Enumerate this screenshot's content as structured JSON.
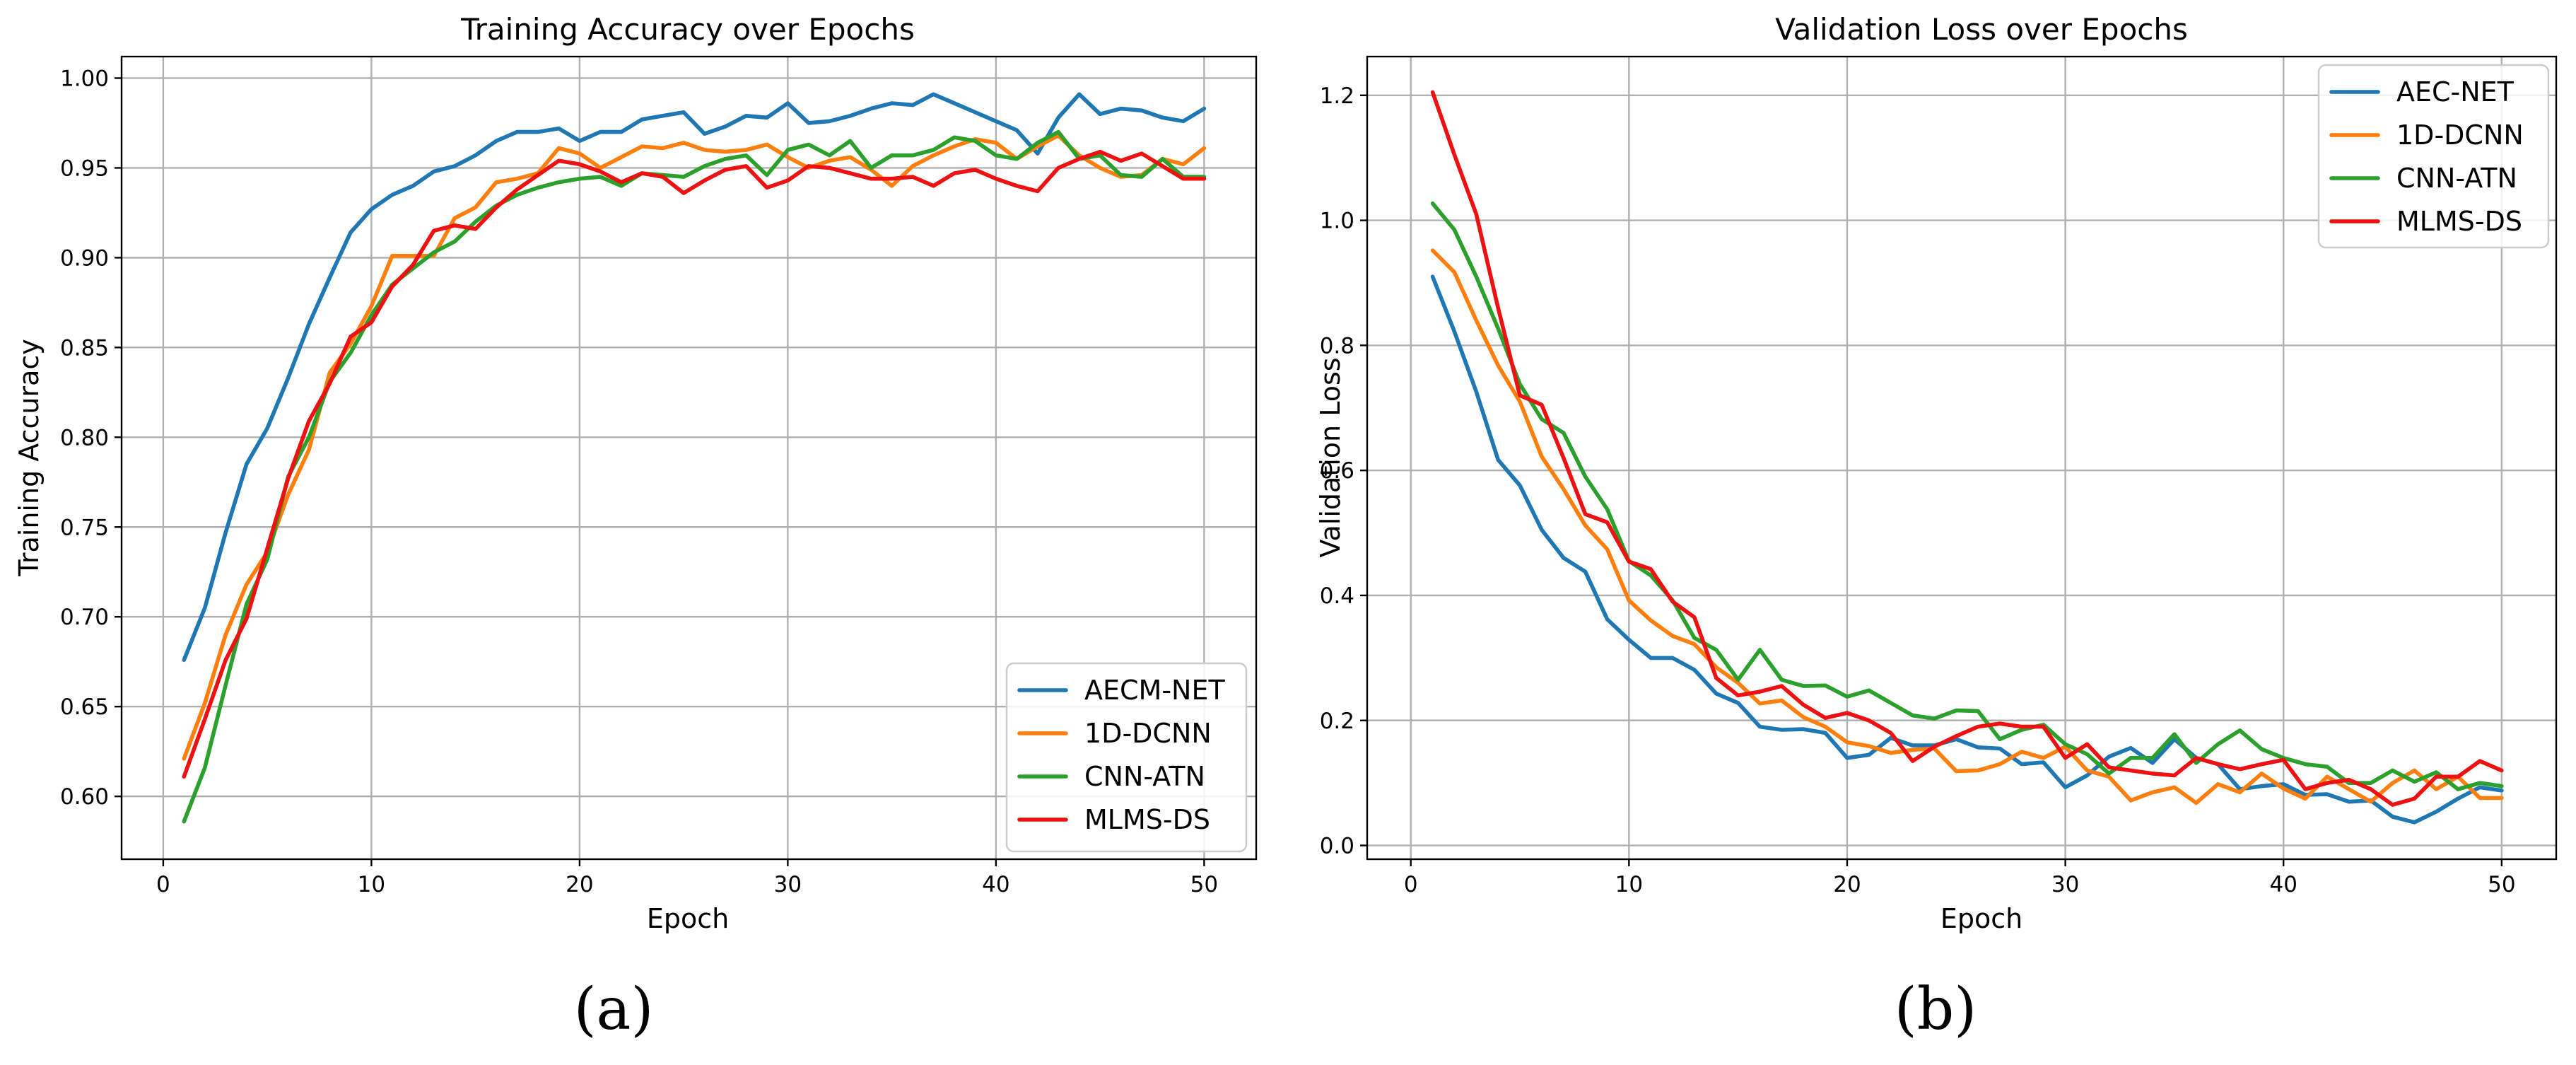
{
  "colors": {
    "blue": "#1f77b4",
    "orange": "#ff7f0e",
    "green": "#2ca02c",
    "red": "#ee1111"
  },
  "chart_data": [
    {
      "type": "line",
      "panel_label": "(a)",
      "title": "Training Accuracy over Epochs",
      "xlabel": "Epoch",
      "ylabel": "Training Accuracy",
      "xlim": [
        -2,
        52.5
      ],
      "ylim": [
        0.565,
        1.012
      ],
      "xticks": [
        0,
        10,
        20,
        30,
        40,
        50
      ],
      "yticks": [
        0.6,
        0.65,
        0.7,
        0.75,
        0.8,
        0.85,
        0.9,
        0.95,
        1.0
      ],
      "ytick_labels": [
        "0.60",
        "0.65",
        "0.70",
        "0.75",
        "0.80",
        "0.85",
        "0.90",
        "0.95",
        "1.00"
      ],
      "grid": true,
      "legend_position": "lower-right",
      "x": [
        1,
        2,
        3,
        4,
        5,
        6,
        7,
        8,
        9,
        10,
        11,
        12,
        13,
        14,
        15,
        16,
        17,
        18,
        19,
        20,
        21,
        22,
        23,
        24,
        25,
        26,
        27,
        28,
        29,
        30,
        31,
        32,
        33,
        34,
        35,
        36,
        37,
        38,
        39,
        40,
        41,
        42,
        43,
        44,
        45,
        46,
        47,
        48,
        49,
        50
      ],
      "series": [
        {
          "name": "AECM-NET",
          "color": "#1f77b4",
          "values": [
            0.676,
            0.705,
            0.747,
            0.785,
            0.805,
            0.833,
            0.863,
            0.889,
            0.914,
            0.927,
            0.935,
            0.94,
            0.948,
            0.951,
            0.957,
            0.965,
            0.97,
            0.97,
            0.972,
            0.965,
            0.97,
            0.97,
            0.977,
            0.979,
            0.981,
            0.969,
            0.973,
            0.979,
            0.978,
            0.986,
            0.975,
            0.976,
            0.979,
            0.983,
            0.986,
            0.985,
            0.991,
            0.986,
            0.981,
            0.976,
            0.971,
            0.958,
            0.978,
            0.991,
            0.98,
            0.983,
            0.982,
            0.978,
            0.976,
            0.983
          ]
        },
        {
          "name": "1D-DCNN",
          "color": "#ff7f0e",
          "values": [
            0.621,
            0.652,
            0.69,
            0.718,
            0.736,
            0.768,
            0.793,
            0.836,
            0.852,
            0.873,
            0.901,
            0.901,
            0.901,
            0.922,
            0.928,
            0.942,
            0.944,
            0.947,
            0.961,
            0.958,
            0.95,
            0.956,
            0.962,
            0.961,
            0.964,
            0.96,
            0.959,
            0.96,
            0.963,
            0.956,
            0.95,
            0.954,
            0.956,
            0.949,
            0.94,
            0.951,
            0.957,
            0.962,
            0.966,
            0.964,
            0.955,
            0.962,
            0.968,
            0.957,
            0.95,
            0.945,
            0.946,
            0.955,
            0.952,
            0.961
          ]
        },
        {
          "name": "CNN-ATN",
          "color": "#2ca02c",
          "values": [
            0.586,
            0.616,
            0.662,
            0.707,
            0.732,
            0.778,
            0.8,
            0.831,
            0.847,
            0.868,
            0.885,
            0.894,
            0.903,
            0.909,
            0.92,
            0.929,
            0.935,
            0.939,
            0.942,
            0.944,
            0.945,
            0.94,
            0.947,
            0.946,
            0.945,
            0.951,
            0.955,
            0.957,
            0.946,
            0.96,
            0.963,
            0.957,
            0.965,
            0.95,
            0.957,
            0.957,
            0.96,
            0.967,
            0.965,
            0.957,
            0.955,
            0.964,
            0.97,
            0.955,
            0.957,
            0.946,
            0.945,
            0.955,
            0.945,
            0.945
          ]
        },
        {
          "name": "MLMS-DS",
          "color": "#ee1111",
          "values": [
            0.611,
            0.643,
            0.676,
            0.699,
            0.738,
            0.777,
            0.809,
            0.83,
            0.856,
            0.864,
            0.884,
            0.896,
            0.915,
            0.918,
            0.916,
            0.928,
            0.938,
            0.946,
            0.954,
            0.952,
            0.948,
            0.942,
            0.947,
            0.945,
            0.936,
            0.943,
            0.949,
            0.951,
            0.939,
            0.943,
            0.951,
            0.95,
            0.947,
            0.944,
            0.944,
            0.945,
            0.94,
            0.947,
            0.949,
            0.944,
            0.94,
            0.937,
            0.95,
            0.955,
            0.959,
            0.954,
            0.958,
            0.951,
            0.944,
            0.944
          ]
        }
      ]
    },
    {
      "type": "line",
      "panel_label": "(b)",
      "title": "Validation Loss over Epochs",
      "xlabel": "Epoch",
      "ylabel": "Validation Loss",
      "xlim": [
        -2,
        52.5
      ],
      "ylim": [
        -0.022,
        1.262
      ],
      "xticks": [
        0,
        10,
        20,
        30,
        40,
        50
      ],
      "yticks": [
        0.0,
        0.2,
        0.4,
        0.6,
        0.8,
        1.0,
        1.2
      ],
      "ytick_labels": [
        "0.0",
        "0.2",
        "0.4",
        "0.6",
        "0.8",
        "1.0",
        "1.2"
      ],
      "grid": true,
      "legend_position": "upper-right",
      "x": [
        1,
        2,
        3,
        4,
        5,
        6,
        7,
        8,
        9,
        10,
        11,
        12,
        13,
        14,
        15,
        16,
        17,
        18,
        19,
        20,
        21,
        22,
        23,
        24,
        25,
        26,
        27,
        28,
        29,
        30,
        31,
        32,
        33,
        34,
        35,
        36,
        37,
        38,
        39,
        40,
        41,
        42,
        43,
        44,
        45,
        46,
        47,
        48,
        49,
        50
      ],
      "series": [
        {
          "name": "AEC-NET",
          "color": "#1f77b4",
          "values": [
            0.91,
            0.822,
            0.726,
            0.617,
            0.576,
            0.505,
            0.46,
            0.438,
            0.362,
            0.329,
            0.3,
            0.3,
            0.281,
            0.243,
            0.228,
            0.19,
            0.185,
            0.186,
            0.18,
            0.14,
            0.145,
            0.172,
            0.16,
            0.16,
            0.17,
            0.157,
            0.155,
            0.13,
            0.133,
            0.093,
            0.112,
            0.142,
            0.156,
            0.132,
            0.17,
            0.14,
            0.13,
            0.09,
            0.095,
            0.098,
            0.081,
            0.082,
            0.07,
            0.072,
            0.046,
            0.037,
            0.054,
            0.075,
            0.093,
            0.088
          ]
        },
        {
          "name": "1D-DCNN",
          "color": "#ff7f0e",
          "values": [
            0.952,
            0.917,
            0.84,
            0.768,
            0.71,
            0.622,
            0.57,
            0.512,
            0.474,
            0.392,
            0.36,
            0.335,
            0.322,
            0.285,
            0.26,
            0.227,
            0.232,
            0.205,
            0.19,
            0.165,
            0.159,
            0.148,
            0.153,
            0.155,
            0.119,
            0.12,
            0.13,
            0.15,
            0.14,
            0.158,
            0.12,
            0.11,
            0.072,
            0.085,
            0.093,
            0.068,
            0.098,
            0.085,
            0.115,
            0.091,
            0.075,
            0.11,
            0.09,
            0.07,
            0.1,
            0.12,
            0.09,
            0.11,
            0.076,
            0.076
          ]
        },
        {
          "name": "CNN-ATN",
          "color": "#2ca02c",
          "values": [
            1.027,
            0.985,
            0.91,
            0.827,
            0.738,
            0.682,
            0.66,
            0.59,
            0.538,
            0.455,
            0.432,
            0.392,
            0.332,
            0.313,
            0.265,
            0.313,
            0.265,
            0.255,
            0.256,
            0.238,
            0.248,
            0.228,
            0.208,
            0.203,
            0.216,
            0.215,
            0.17,
            0.185,
            0.193,
            0.162,
            0.146,
            0.115,
            0.14,
            0.14,
            0.178,
            0.132,
            0.162,
            0.184,
            0.154,
            0.14,
            0.13,
            0.126,
            0.1,
            0.1,
            0.12,
            0.102,
            0.117,
            0.09,
            0.1,
            0.095
          ]
        },
        {
          "name": "MLMS-DS",
          "color": "#ee1111",
          "values": [
            1.205,
            1.105,
            1.01,
            0.86,
            0.72,
            0.705,
            0.62,
            0.53,
            0.517,
            0.454,
            0.442,
            0.39,
            0.365,
            0.268,
            0.24,
            0.246,
            0.255,
            0.225,
            0.204,
            0.212,
            0.2,
            0.18,
            0.135,
            0.158,
            0.175,
            0.19,
            0.195,
            0.19,
            0.19,
            0.14,
            0.162,
            0.125,
            0.12,
            0.115,
            0.112,
            0.14,
            0.13,
            0.122,
            0.13,
            0.137,
            0.09,
            0.1,
            0.105,
            0.09,
            0.065,
            0.075,
            0.11,
            0.11,
            0.135,
            0.12
          ]
        }
      ]
    }
  ]
}
